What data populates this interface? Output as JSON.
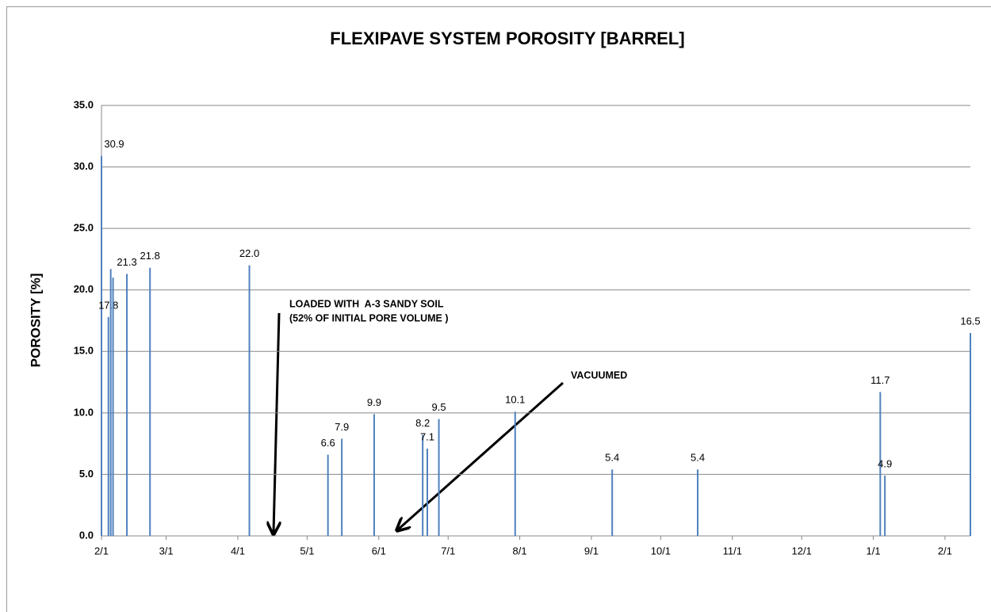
{
  "chart_data": {
    "type": "bar",
    "title": "FLEXIPAVE SYSTEM POROSITY [BARREL]",
    "y_label": "POROSITY [%]",
    "annotations": [
      "LOADED WITH  A-3 SANDY SOIL",
      "(52% OF INITIAL PORE VOLUME )",
      "VACUUMED"
    ],
    "x": [
      0,
      3,
      4,
      5,
      11,
      21,
      64,
      98,
      104,
      118,
      139,
      141,
      146,
      179,
      221,
      258,
      337,
      339,
      376
    ],
    "values": [
      30.9,
      17.8,
      21.7,
      21.0,
      21.3,
      21.8,
      22.0,
      6.6,
      7.9,
      9.9,
      8.2,
      7.1,
      9.5,
      10.1,
      5.4,
      5.4,
      11.7,
      4.9,
      16.5
    ],
    "value_labels": [
      "30.9",
      "17.8",
      null,
      null,
      "21.3",
      "21.8",
      "22.0",
      "6.6",
      "7.9",
      "9.9",
      "8.2",
      "7.1",
      "9.5",
      "10.1",
      "5.4",
      "5.4",
      "11.7",
      "4.9",
      "16.5"
    ],
    "color": "#4f81bd",
    "xlim": [
      0,
      376
    ],
    "xticks": [
      {
        "value": 0,
        "label": "2/1"
      },
      {
        "value": 28,
        "label": "3/1"
      },
      {
        "value": 59,
        "label": "4/1"
      },
      {
        "value": 89,
        "label": "5/1"
      },
      {
        "value": 120,
        "label": "6/1"
      },
      {
        "value": 150,
        "label": "7/1"
      },
      {
        "value": 181,
        "label": "8/1"
      },
      {
        "value": 212,
        "label": "9/1"
      },
      {
        "value": 242,
        "label": "10/1"
      },
      {
        "value": 273,
        "label": "11/1"
      },
      {
        "value": 303,
        "label": "12/1"
      },
      {
        "value": 334,
        "label": "1/1"
      },
      {
        "value": 365,
        "label": "2/1"
      }
    ],
    "ylim": [
      0,
      35
    ],
    "yticks": [
      {
        "value": 0,
        "label": "0.0"
      },
      {
        "value": 5,
        "label": "5.0"
      },
      {
        "value": 10,
        "label": "10.0"
      },
      {
        "value": 15,
        "label": "15.0"
      },
      {
        "value": 20,
        "label": "20.0"
      },
      {
        "value": 25,
        "label": "25.0"
      },
      {
        "value": 30,
        "label": "30.0"
      },
      {
        "value": 35,
        "label": "35.0"
      }
    ],
    "grid": true
  }
}
